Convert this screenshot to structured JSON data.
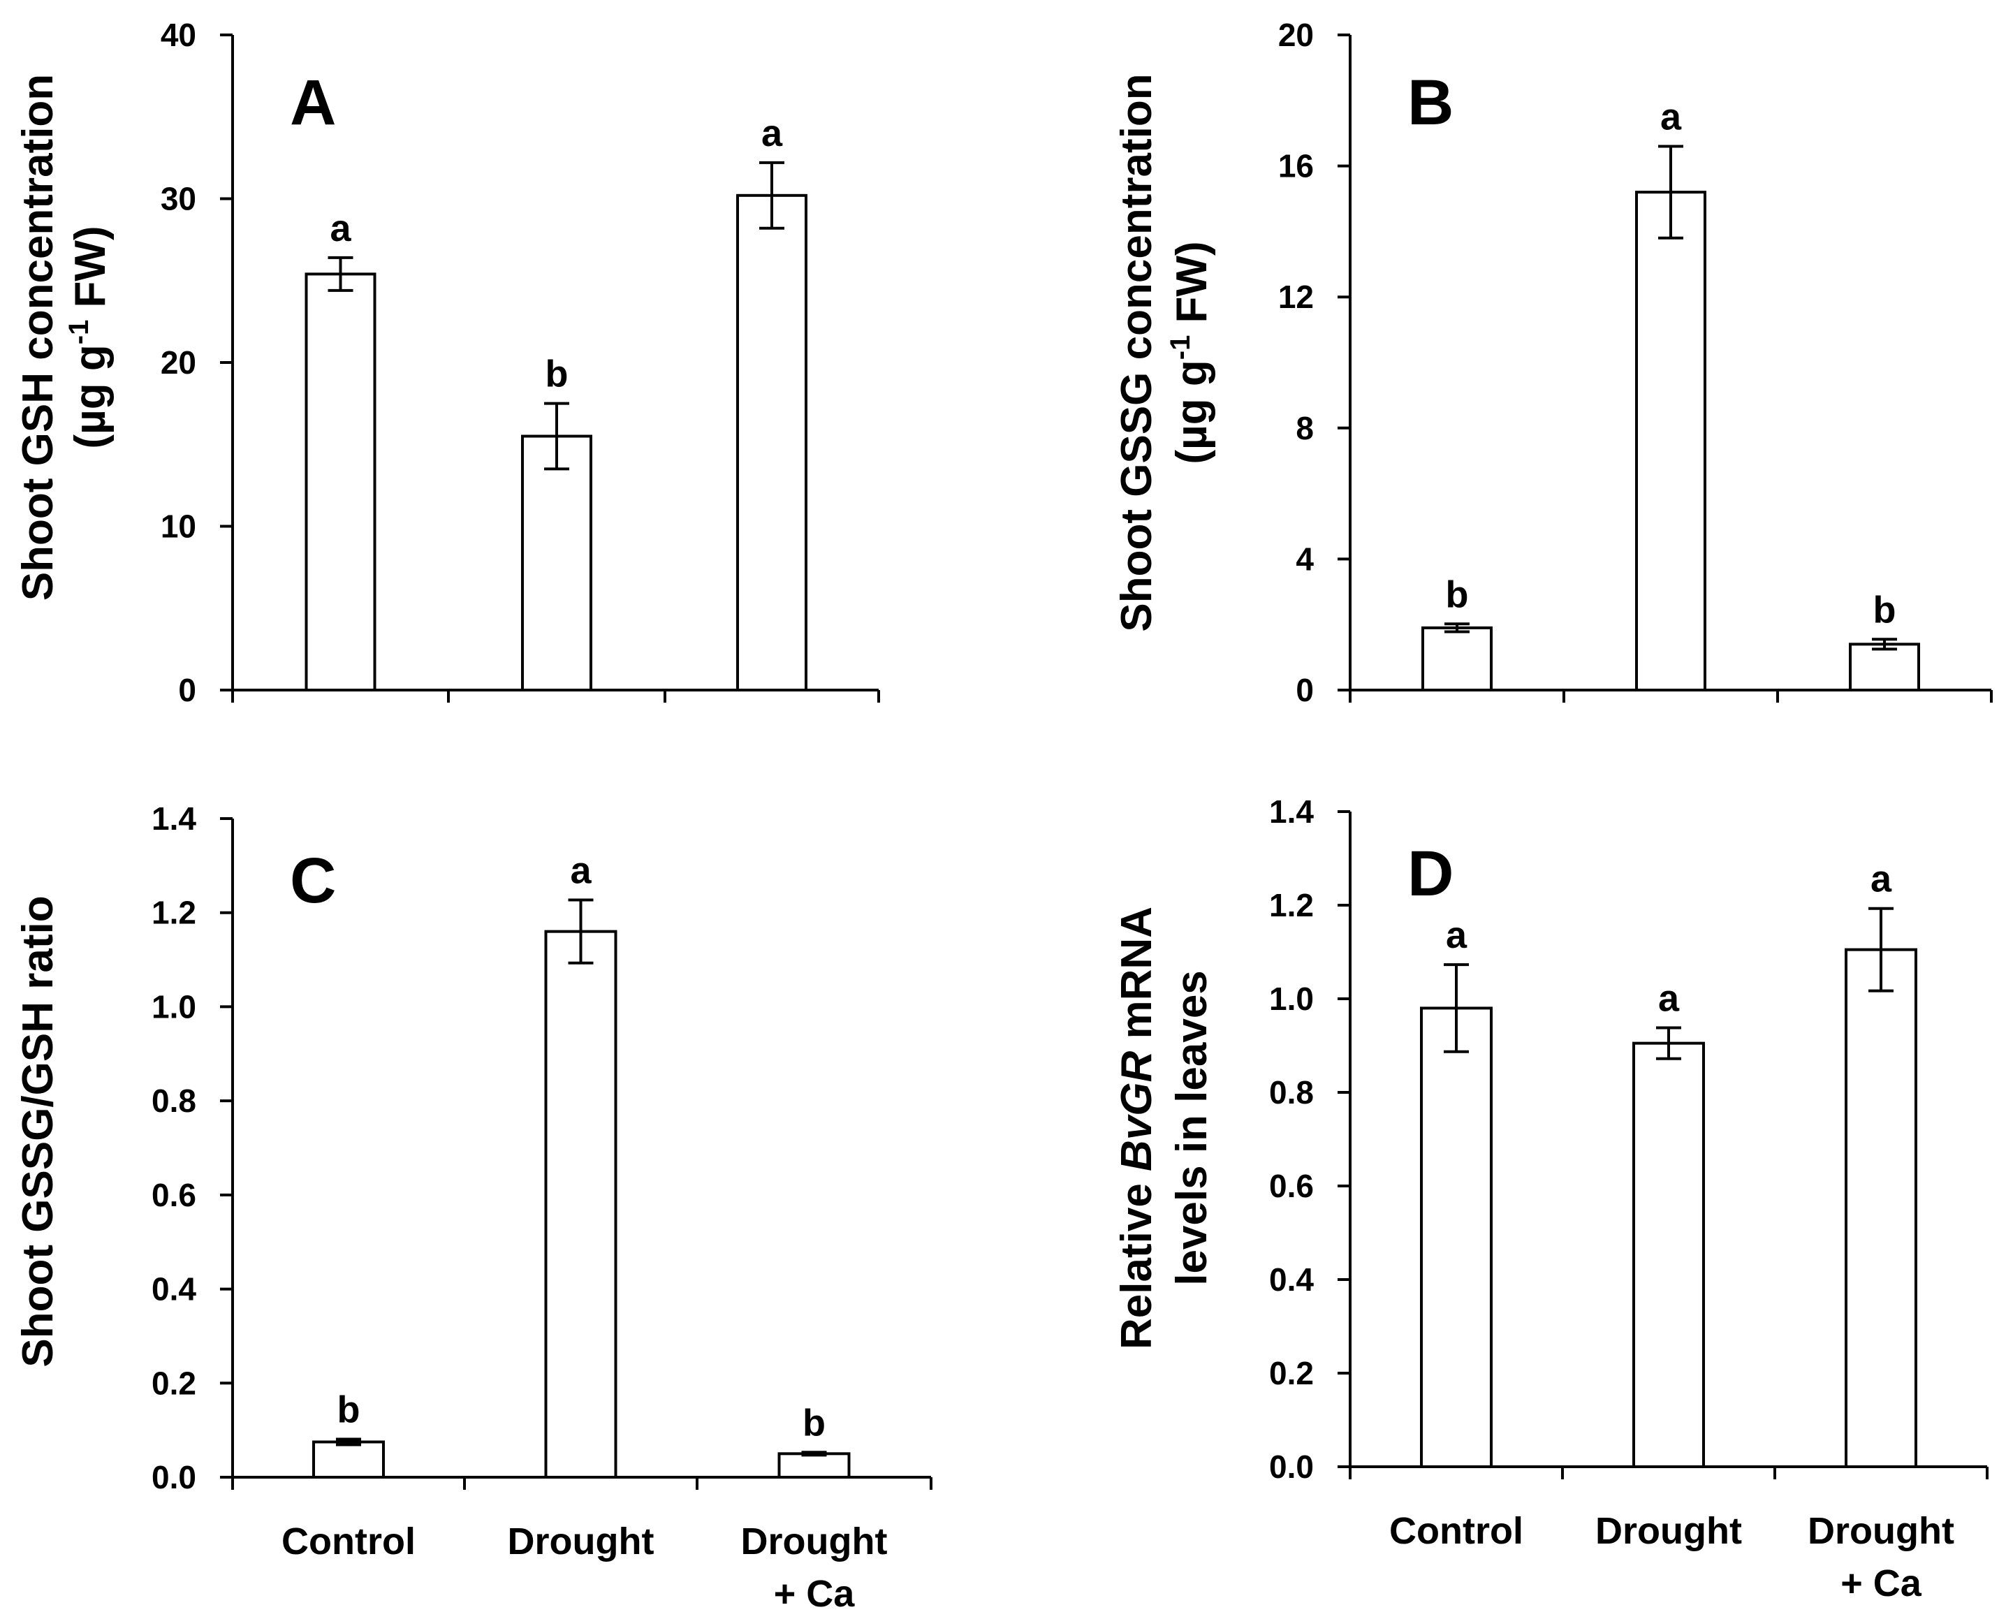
{
  "chart_data": [
    {
      "panel": "A",
      "type": "bar",
      "categories": [
        "Control",
        "Drought",
        "Drought + Ca"
      ],
      "category_label_lines": [],
      "values": [
        25.4,
        15.5,
        30.2
      ],
      "errors": [
        1.0,
        2.0,
        2.0
      ],
      "letters": [
        "a",
        "b",
        "a"
      ],
      "ylabel_lines": [
        "Shoot GSH concentration",
        "(µg g",
        "-1",
        " FW)"
      ],
      "ylim": [
        0,
        40
      ],
      "yticks": [
        "0",
        "10",
        "20",
        "30",
        "40"
      ]
    },
    {
      "panel": "B",
      "type": "bar",
      "categories": [
        "Control",
        "Drought",
        "Drought + Ca"
      ],
      "category_label_lines": [],
      "values": [
        1.9,
        15.2,
        1.4
      ],
      "errors": [
        0.12,
        1.4,
        0.15
      ],
      "letters": [
        "b",
        "a",
        "b"
      ],
      "ylabel_lines": [
        "Shoot GSSG concentration",
        "(µg g",
        "-1",
        " FW)"
      ],
      "ylim": [
        0,
        20
      ],
      "yticks": [
        "0",
        "4",
        "8",
        "12",
        "16",
        "20"
      ]
    },
    {
      "panel": "C",
      "type": "bar",
      "categories": [
        "Control",
        "Drought",
        "Drought + Ca"
      ],
      "category_label_lines": [
        [
          "Control"
        ],
        [
          "Drought"
        ],
        [
          "Drought",
          "+ Ca"
        ]
      ],
      "values": [
        0.075,
        1.16,
        0.05
      ],
      "errors": [
        0.006,
        0.067,
        0.003
      ],
      "letters": [
        "b",
        "a",
        "b"
      ],
      "ylabel_lines": [
        "Shoot GSSG/GSH ratio"
      ],
      "ylim": [
        0,
        1.4
      ],
      "yticks": [
        "0.0",
        "0.2",
        "0.4",
        "0.6",
        "0.8",
        "1.0",
        "1.2",
        "1.4"
      ]
    },
    {
      "panel": "D",
      "type": "bar",
      "categories": [
        "Control",
        "Drought",
        "Drought + Ca"
      ],
      "category_label_lines": [
        [
          "Control"
        ],
        [
          "Drought"
        ],
        [
          "Drought",
          "+ Ca"
        ]
      ],
      "values": [
        0.98,
        0.905,
        1.105
      ],
      "errors": [
        0.093,
        0.033,
        0.088
      ],
      "letters": [
        "a",
        "a",
        "a"
      ],
      "ylabel_lines": [
        "Relative ",
        "BvGR",
        " mRNA",
        "levels in leaves"
      ],
      "ylim": [
        0,
        1.4
      ],
      "yticks": [
        "0.0",
        "0.2",
        "0.4",
        "0.6",
        "0.8",
        "1.0",
        "1.2",
        "1.4"
      ]
    }
  ]
}
